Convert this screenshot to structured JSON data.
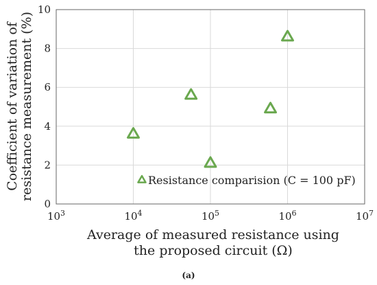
{
  "chart_data": {
    "type": "scatter",
    "x_scale": "log",
    "xlim": [
      1000,
      10000000
    ],
    "ylim": [
      0,
      10
    ],
    "x_ticks": [
      {
        "value": 1000,
        "base": "10",
        "exp": "3"
      },
      {
        "value": 10000,
        "base": "10",
        "exp": "4"
      },
      {
        "value": 100000,
        "base": "10",
        "exp": "5"
      },
      {
        "value": 1000000,
        "base": "10",
        "exp": "6"
      },
      {
        "value": 10000000,
        "base": "10",
        "exp": "7"
      }
    ],
    "y_ticks": [
      0,
      2,
      4,
      6,
      8,
      10
    ],
    "grid": true,
    "xlabel_lines": [
      "Average of measured resistance using",
      "the proposed circuit (Ω)"
    ],
    "ylabel_lines": [
      "Coefficient of variation of",
      "resistance measurement (%)"
    ],
    "series": [
      {
        "name": "Resistance comparision (C = 100 pF)",
        "marker": "open-triangle",
        "color": "#6aa84f",
        "points": [
          {
            "x": 10000,
            "y": 3.6
          },
          {
            "x": 56000,
            "y": 5.6
          },
          {
            "x": 100000,
            "y": 2.1
          },
          {
            "x": 600000,
            "y": 4.9
          },
          {
            "x": 1000000,
            "y": 8.6
          }
        ]
      }
    ],
    "legend_position": "bottom-right",
    "caption": "(a)"
  }
}
